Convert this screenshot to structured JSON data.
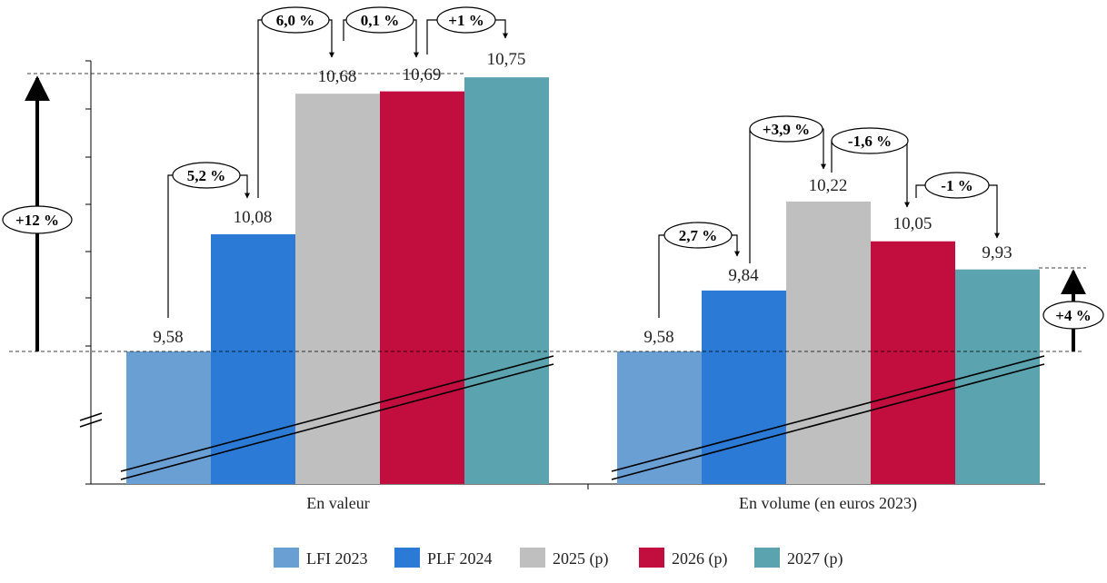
{
  "chart_data": {
    "type": "bar",
    "categories": [
      "En valeur",
      "En volume (en euros 2023)"
    ],
    "series": [
      {
        "name": "LFI 2023",
        "color": "#6a9fd4",
        "values": [
          9.58,
          9.58
        ],
        "labels": [
          "9,58",
          "9,58"
        ]
      },
      {
        "name": "PLF 2024",
        "color": "#2b7bd6",
        "values": [
          10.08,
          9.84
        ],
        "labels": [
          "10,08",
          "9,84"
        ]
      },
      {
        "name": "2025 (p)",
        "color": "#bfbfbf",
        "values": [
          10.68,
          10.22
        ],
        "labels": [
          "10,68",
          "10,22"
        ]
      },
      {
        "name": "2026 (p)",
        "color": "#c20e3e",
        "values": [
          10.69,
          10.05
        ],
        "labels": [
          "10,69",
          "10,05"
        ]
      },
      {
        "name": "2027 (p)",
        "color": "#5ba3ae",
        "values": [
          10.75,
          9.93
        ],
        "labels": [
          "10,75",
          "9,93"
        ]
      }
    ],
    "growth_labels": [
      [
        "5,2 %",
        "6,0 %",
        "0,1 %",
        "+1 %"
      ],
      [
        "2,7 %",
        "+3,9 %",
        "-1,6 %",
        "-1 %"
      ]
    ],
    "cumulative_labels": [
      "+12 %",
      "+4 %"
    ],
    "axis_break": true,
    "legend_position": "bottom"
  }
}
